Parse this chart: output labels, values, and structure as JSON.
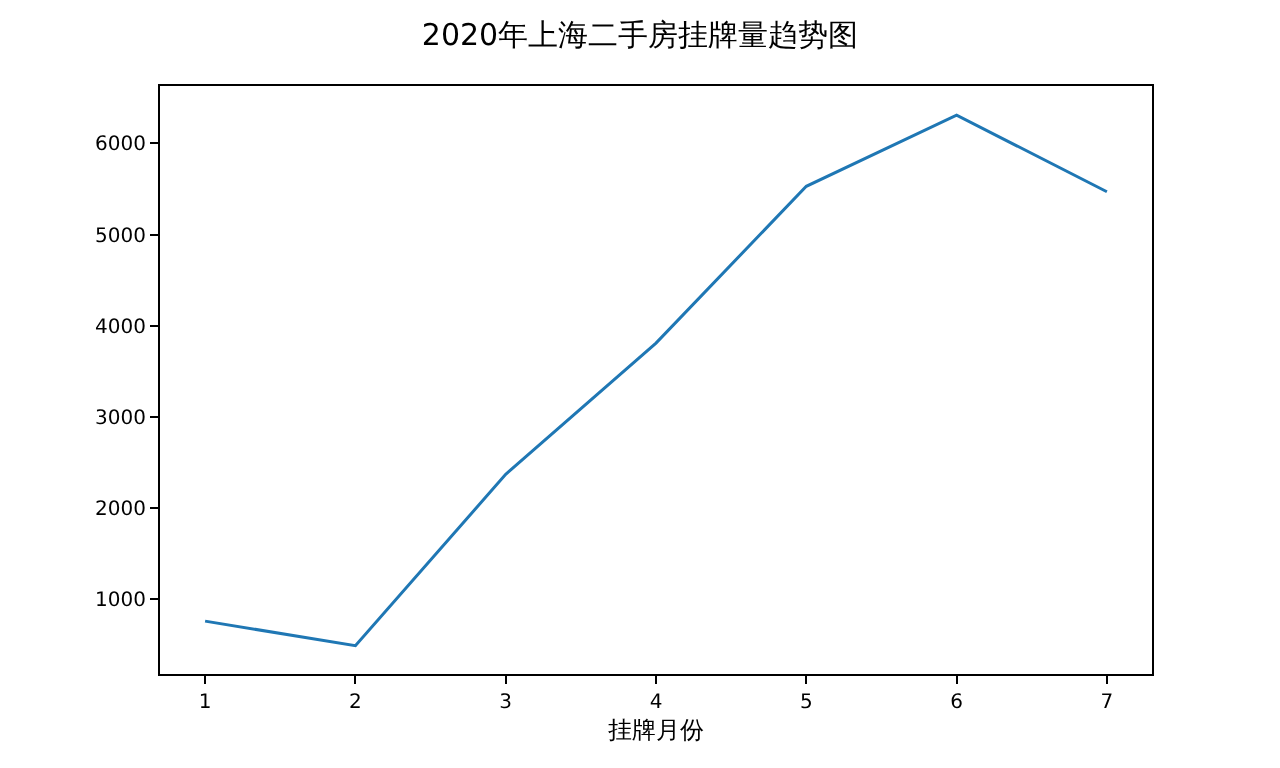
{
  "chart_data": {
    "type": "line",
    "title": "2020年上海二手房挂牌量趋势图",
    "xlabel": "挂牌月份",
    "x": [
      1,
      2,
      3,
      4,
      5,
      6,
      7
    ],
    "series": [
      {
        "color": "#1f77b4",
        "values": [
          760,
          490,
          2370,
          3810,
          5530,
          6310,
          5470
        ]
      }
    ],
    "xlim": [
      0.7,
      7.3
    ],
    "xticks": [
      1,
      2,
      3,
      4,
      5,
      6,
      7
    ],
    "ylim": [
      180,
      6630
    ],
    "yticks": [
      1000,
      2000,
      3000,
      4000,
      5000,
      6000
    ],
    "grid": false,
    "marker": "none",
    "line_style": "solid"
  }
}
